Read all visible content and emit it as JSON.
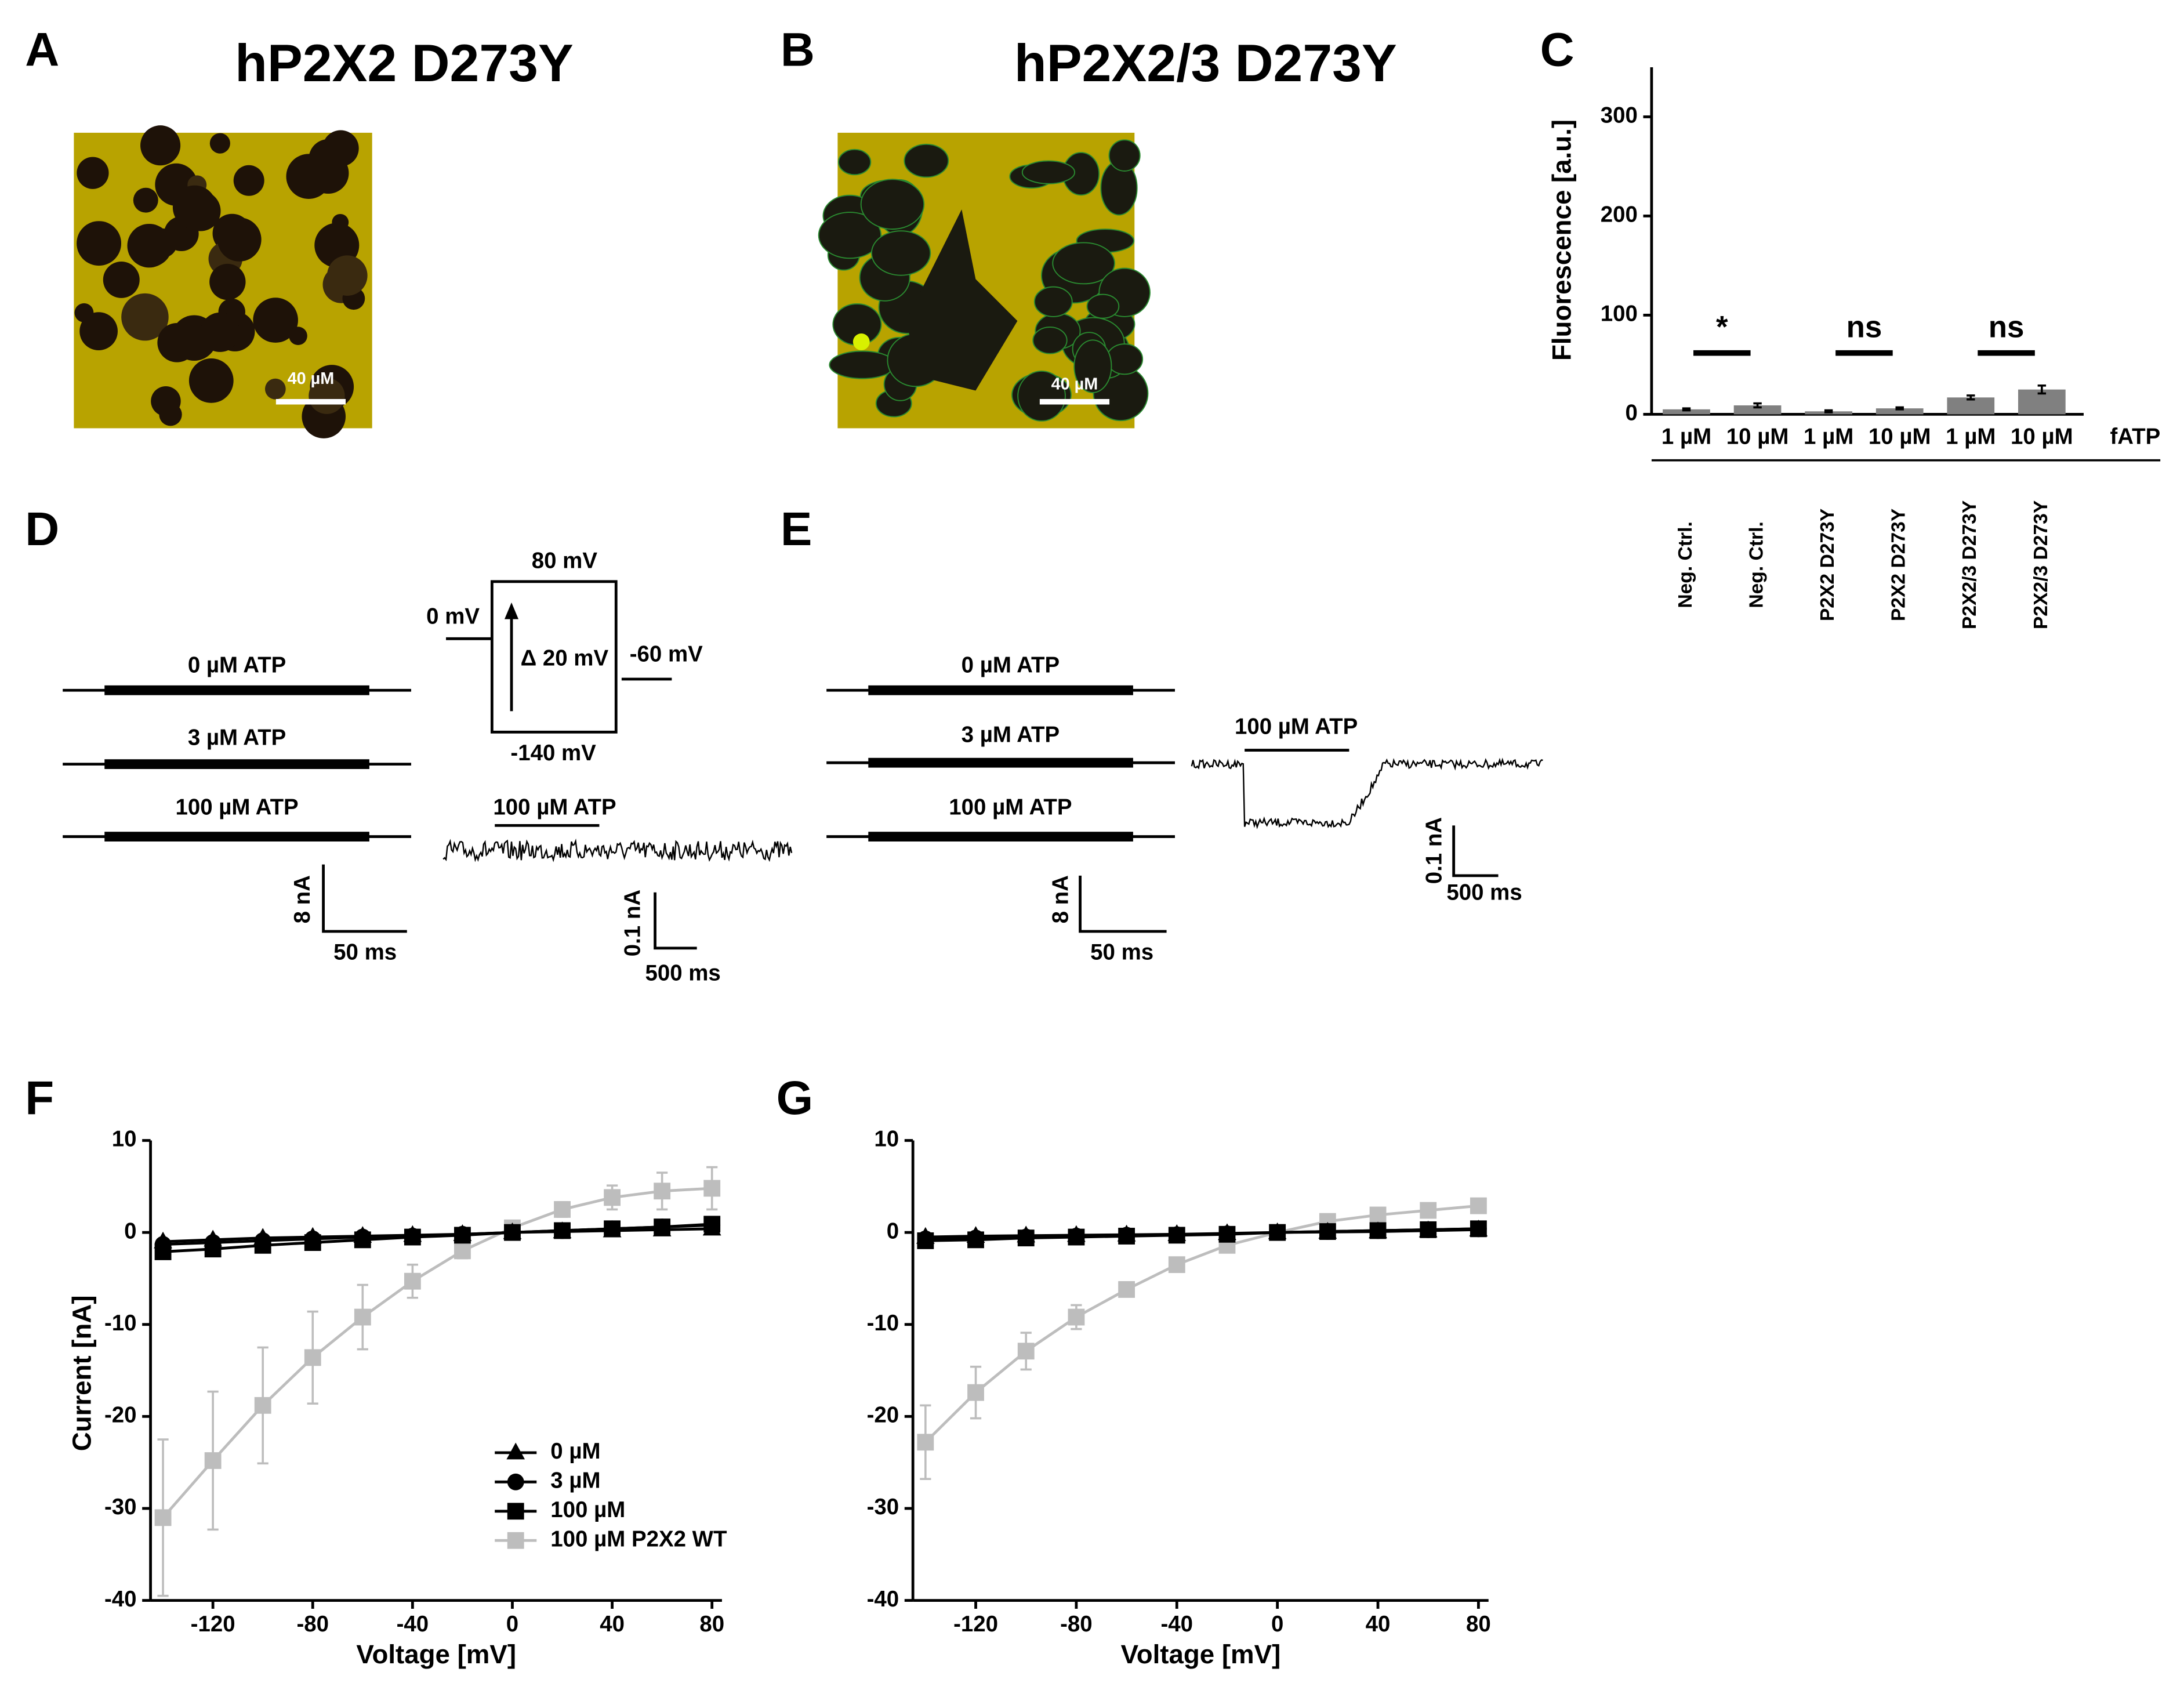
{
  "panels": {
    "A": {
      "label": "A",
      "title": "hP2X2 D273Y",
      "scale_bar": "40 µM"
    },
    "B": {
      "label": "B",
      "title": "hP2X2/3 D273Y",
      "scale_bar": "40 µM"
    },
    "D": {
      "label": "D",
      "traces": [
        "0 µM ATP",
        "3 µM ATP",
        "100 µM ATP"
      ],
      "scale_y": "8 nA",
      "scale_x": "50 ms",
      "protocol": {
        "top": "80 mV",
        "hold": "0 mV",
        "step": "Δ 20 mV",
        "end": "-60 mV",
        "bottom": "-140 mV"
      },
      "trace2_label": "100 µM ATP",
      "scale2_y": "0.1 nA",
      "scale2_x": "500 ms"
    },
    "E": {
      "label": "E",
      "traces": [
        "0 µM ATP",
        "3 µM ATP",
        "100 µM ATP"
      ],
      "scale_y": "8 nA",
      "scale_x": "50 ms",
      "trace2_label": "100 µM ATP",
      "scale2_y": "0.1 nA",
      "scale2_x": "500 ms"
    }
  },
  "chart_data": [
    {
      "type": "bar",
      "panel_label": "C",
      "y_label": "Fluorescence [a.u.]",
      "x_label": "fATP",
      "categories": [
        "1 µM",
        "10 µM",
        "1 µM",
        "10 µM",
        "1 µM",
        "10 µM"
      ],
      "groups": [
        "Neg. Ctrl.",
        "Neg. Ctrl.",
        "P2X2 D273Y",
        "P2X2 D273Y",
        "P2X2/3 D273Y",
        "P2X2/3 D273Y"
      ],
      "values": [
        5,
        9,
        3,
        6,
        17,
        25
      ],
      "errors": [
        1,
        2,
        1,
        1,
        2,
        4
      ],
      "color": "#808080",
      "significance": [
        "*",
        "ns",
        "ns"
      ],
      "ylim": [
        0,
        350
      ],
      "yticks": [
        0,
        100,
        200,
        300
      ]
    },
    {
      "type": "line",
      "panel_label": "F",
      "x_label": "Voltage [mV]",
      "y_label": "Current [nA]",
      "x": [
        -140,
        -120,
        -100,
        -80,
        -60,
        -40,
        -20,
        0,
        20,
        40,
        60,
        80
      ],
      "series": [
        {
          "name": "0 µM",
          "color": "#000000",
          "marker": "triangle",
          "values": [
            -1,
            -0.8,
            -0.6,
            -0.5,
            -0.4,
            -0.3,
            -0.2,
            0,
            0.1,
            0.2,
            0.3,
            0.4
          ]
        },
        {
          "name": "3 µM",
          "color": "#000000",
          "marker": "circle",
          "values": [
            -1.3,
            -1.1,
            -0.9,
            -0.7,
            -0.5,
            -0.4,
            -0.2,
            0,
            0.2,
            0.4,
            0.6,
            0.8
          ]
        },
        {
          "name": "100 µM",
          "color": "#000000",
          "marker": "square",
          "values": [
            -2.1,
            -1.8,
            -1.4,
            -1.1,
            -0.8,
            -0.5,
            -0.3,
            0,
            0.2,
            0.4,
            0.6,
            0.9
          ]
        },
        {
          "name": "100 µM P2X2 WT",
          "color": "#bdbdbd",
          "marker": "square",
          "values": [
            -31,
            -24.8,
            -18.8,
            -13.6,
            -9.2,
            -5.3,
            -2,
            0.5,
            2.5,
            3.8,
            4.5,
            4.8
          ],
          "errors": [
            8.5,
            7.5,
            6.3,
            5,
            3.5,
            1.8,
            0.8,
            0.7,
            0.8,
            1.3,
            2,
            2.3
          ]
        }
      ],
      "legend": true,
      "xlim": [
        -145,
        84
      ],
      "xticks": [
        -120,
        -80,
        -40,
        0,
        40,
        80
      ],
      "ylim": [
        -40,
        10
      ],
      "yticks": [
        -40,
        -30,
        -20,
        -10,
        0,
        10
      ]
    },
    {
      "type": "line",
      "panel_label": "G",
      "x_label": "Voltage [mV]",
      "x": [
        -140,
        -120,
        -100,
        -80,
        -60,
        -40,
        -20,
        0,
        20,
        40,
        60,
        80
      ],
      "series": [
        {
          "color": "#000000",
          "marker": "triangle",
          "values": [
            -0.5,
            -0.4,
            -0.35,
            -0.3,
            -0.25,
            -0.2,
            -0.1,
            0,
            0.05,
            0.1,
            0.2,
            0.3
          ]
        },
        {
          "color": "#000000",
          "marker": "circle",
          "values": [
            -0.7,
            -0.6,
            -0.5,
            -0.4,
            -0.3,
            -0.25,
            -0.15,
            0,
            0.1,
            0.2,
            0.3,
            0.4
          ]
        },
        {
          "color": "#000000",
          "marker": "square",
          "values": [
            -0.9,
            -0.8,
            -0.6,
            -0.5,
            -0.4,
            -0.3,
            -0.2,
            0,
            0.1,
            0.2,
            0.3,
            0.4
          ]
        },
        {
          "color": "#bdbdbd",
          "marker": "square",
          "values": [
            -22.8,
            -17.4,
            -12.9,
            -9.2,
            -6.2,
            -3.5,
            -1.4,
            0,
            1.2,
            1.9,
            2.4,
            2.9
          ],
          "errors": [
            4,
            2.8,
            2,
            1.3,
            0.6,
            0.4,
            0.3,
            0.3,
            0.3,
            0.3,
            0.4,
            0.4
          ]
        }
      ],
      "legend": false,
      "xlim": [
        -145,
        84
      ],
      "xticks": [
        -120,
        -80,
        -40,
        0,
        40,
        80
      ],
      "ylim": [
        -40,
        10
      ],
      "yticks": [
        -40,
        -30,
        -20,
        -10,
        0,
        10
      ]
    }
  ]
}
